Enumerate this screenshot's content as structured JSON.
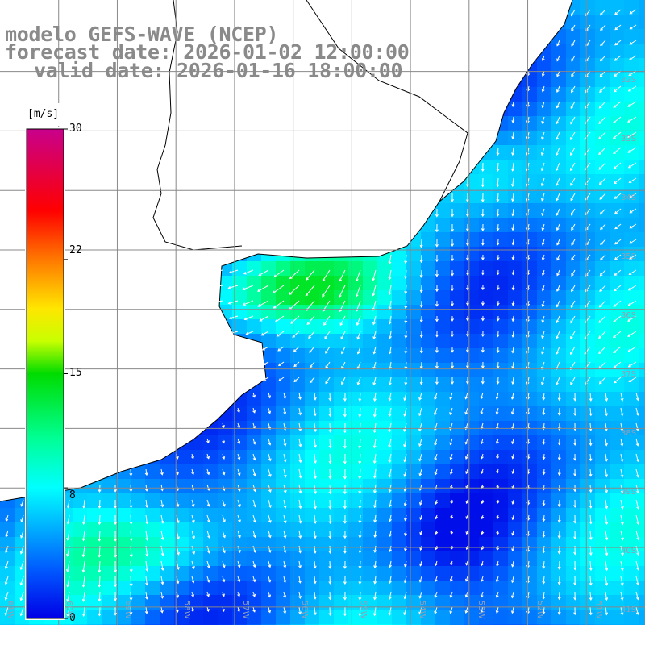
{
  "title": {
    "line1": "modelo GEFS-WAVE (NCEP)",
    "line2": "forecast date: 2026-01-02 12:00:00",
    "line3": "valid date: 2026-01-16 18:00:00"
  },
  "colorbar": {
    "unit": "[m/s]",
    "min": 0,
    "max": 30,
    "ticks": [
      "30",
      "22",
      "15",
      "8",
      "0"
    ],
    "tick_values": [
      30,
      22,
      15,
      8,
      0
    ]
  },
  "map": {
    "lat_labels": [
      "32S",
      "33S",
      "34S",
      "35S",
      "36S",
      "37S",
      "38S",
      "39S",
      "40S",
      "41S"
    ],
    "lat_values": [
      -32,
      -33,
      -34,
      -35,
      -36,
      -37,
      -38,
      -39,
      -40,
      -41
    ],
    "lon_labels": [
      "61W",
      "60W",
      "59W",
      "58W",
      "57W",
      "56W",
      "55W",
      "54W",
      "53W",
      "52W",
      "51W"
    ],
    "lon_values": [
      -61,
      -60,
      -59,
      -58,
      -57,
      -56,
      -55,
      -54,
      -53,
      -52,
      -51
    ],
    "extent": {
      "lon_min": -62,
      "lon_max": -51,
      "lat_min": -41.3,
      "lat_max": -30.8
    },
    "colors": {
      "grid": "#888888",
      "land": "#ffffff",
      "coast": "#000000",
      "arrow": "#ffffff"
    }
  }
}
